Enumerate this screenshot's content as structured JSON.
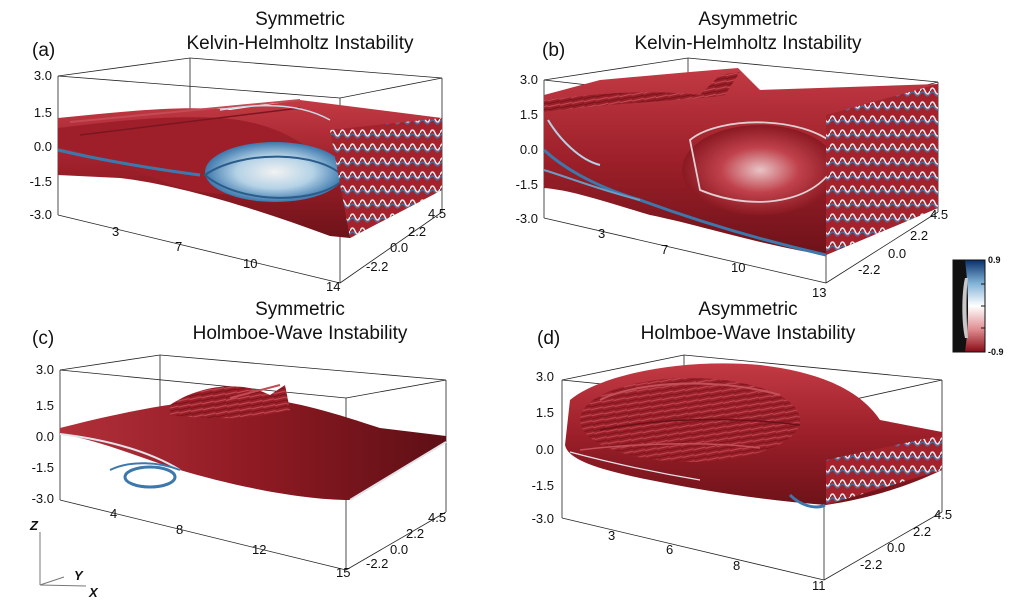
{
  "panels": [
    {
      "label": "(a)",
      "title_line1": "Symmetric",
      "title_line2": "Kelvin-Helmholtz Instability",
      "z_ticks": [
        "3.0",
        "1.5",
        "0.0",
        "-1.5",
        "-3.0"
      ],
      "x_ticks": [
        "3",
        "7",
        "10",
        "14"
      ],
      "y_ticks": [
        "4.5",
        "2.2",
        "0.0",
        "-2.2"
      ]
    },
    {
      "label": "(b)",
      "title_line1": "Asymmetric",
      "title_line2": "Kelvin-Helmholtz Instability",
      "z_ticks": [
        "3.0",
        "1.5",
        "0.0",
        "-1.5",
        "-3.0"
      ],
      "x_ticks": [
        "3",
        "7",
        "10",
        "13"
      ],
      "y_ticks": [
        "4.5",
        "2.2",
        "0.0",
        "-2.2"
      ]
    },
    {
      "label": "(c)",
      "title_line1": "Symmetric",
      "title_line2": "Holmboe-Wave Instability",
      "z_ticks": [
        "3.0",
        "1.5",
        "0.0",
        "-1.5",
        "-3.0"
      ],
      "x_ticks": [
        "4",
        "8",
        "12",
        "15"
      ],
      "y_ticks": [
        "4.5",
        "2.2",
        "0.0",
        "-2.2"
      ]
    },
    {
      "label": "(d)",
      "title_line1": "Asymmetric",
      "title_line2": "Holmboe-Wave Instability",
      "z_ticks": [
        "3.0",
        "1.5",
        "0.0",
        "-1.5",
        "-3.0"
      ],
      "x_ticks": [
        "3",
        "6",
        "8",
        "11"
      ],
      "y_ticks": [
        "4.5",
        "2.2",
        "0.0",
        "-2.2"
      ]
    }
  ],
  "colorbar": {
    "max_label": "0.9",
    "min_label": "-0.9"
  },
  "triad": {
    "z": "Z",
    "y": "Y",
    "x": "X"
  },
  "colors": {
    "red": "#a3222c",
    "dark_red": "#6e1219",
    "light_red": "#d77a7f",
    "blue": "#3d78ad",
    "light_blue": "#b4d2e6"
  }
}
